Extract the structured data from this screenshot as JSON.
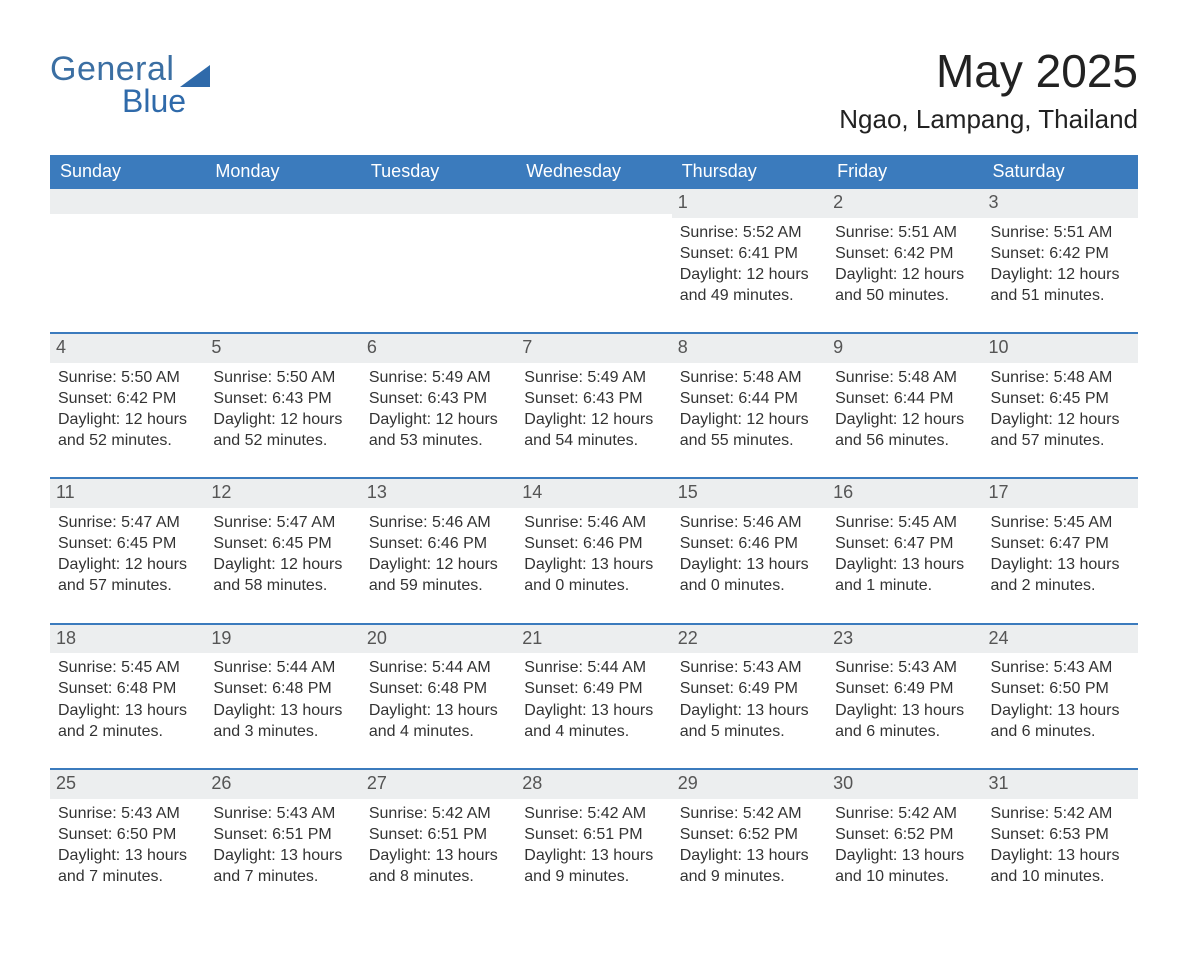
{
  "brand": {
    "word1": "General",
    "word2": "Blue",
    "color": "#2f6aaa"
  },
  "title": "May 2025",
  "location": "Ngao, Lampang, Thailand",
  "header_bg": "#3b7bbd",
  "header_fg": "#ffffff",
  "band_bg": "#eceeef",
  "text_color": "#333333",
  "day_headers": [
    "Sunday",
    "Monday",
    "Tuesday",
    "Wednesday",
    "Thursday",
    "Friday",
    "Saturday"
  ],
  "weeks": [
    [
      null,
      null,
      null,
      null,
      {
        "n": "1",
        "sunrise": "Sunrise: 5:52 AM",
        "sunset": "Sunset: 6:41 PM",
        "dl1": "Daylight: 12 hours",
        "dl2": "and 49 minutes."
      },
      {
        "n": "2",
        "sunrise": "Sunrise: 5:51 AM",
        "sunset": "Sunset: 6:42 PM",
        "dl1": "Daylight: 12 hours",
        "dl2": "and 50 minutes."
      },
      {
        "n": "3",
        "sunrise": "Sunrise: 5:51 AM",
        "sunset": "Sunset: 6:42 PM",
        "dl1": "Daylight: 12 hours",
        "dl2": "and 51 minutes."
      }
    ],
    [
      {
        "n": "4",
        "sunrise": "Sunrise: 5:50 AM",
        "sunset": "Sunset: 6:42 PM",
        "dl1": "Daylight: 12 hours",
        "dl2": "and 52 minutes."
      },
      {
        "n": "5",
        "sunrise": "Sunrise: 5:50 AM",
        "sunset": "Sunset: 6:43 PM",
        "dl1": "Daylight: 12 hours",
        "dl2": "and 52 minutes."
      },
      {
        "n": "6",
        "sunrise": "Sunrise: 5:49 AM",
        "sunset": "Sunset: 6:43 PM",
        "dl1": "Daylight: 12 hours",
        "dl2": "and 53 minutes."
      },
      {
        "n": "7",
        "sunrise": "Sunrise: 5:49 AM",
        "sunset": "Sunset: 6:43 PM",
        "dl1": "Daylight: 12 hours",
        "dl2": "and 54 minutes."
      },
      {
        "n": "8",
        "sunrise": "Sunrise: 5:48 AM",
        "sunset": "Sunset: 6:44 PM",
        "dl1": "Daylight: 12 hours",
        "dl2": "and 55 minutes."
      },
      {
        "n": "9",
        "sunrise": "Sunrise: 5:48 AM",
        "sunset": "Sunset: 6:44 PM",
        "dl1": "Daylight: 12 hours",
        "dl2": "and 56 minutes."
      },
      {
        "n": "10",
        "sunrise": "Sunrise: 5:48 AM",
        "sunset": "Sunset: 6:45 PM",
        "dl1": "Daylight: 12 hours",
        "dl2": "and 57 minutes."
      }
    ],
    [
      {
        "n": "11",
        "sunrise": "Sunrise: 5:47 AM",
        "sunset": "Sunset: 6:45 PM",
        "dl1": "Daylight: 12 hours",
        "dl2": "and 57 minutes."
      },
      {
        "n": "12",
        "sunrise": "Sunrise: 5:47 AM",
        "sunset": "Sunset: 6:45 PM",
        "dl1": "Daylight: 12 hours",
        "dl2": "and 58 minutes."
      },
      {
        "n": "13",
        "sunrise": "Sunrise: 5:46 AM",
        "sunset": "Sunset: 6:46 PM",
        "dl1": "Daylight: 12 hours",
        "dl2": "and 59 minutes."
      },
      {
        "n": "14",
        "sunrise": "Sunrise: 5:46 AM",
        "sunset": "Sunset: 6:46 PM",
        "dl1": "Daylight: 13 hours",
        "dl2": "and 0 minutes."
      },
      {
        "n": "15",
        "sunrise": "Sunrise: 5:46 AM",
        "sunset": "Sunset: 6:46 PM",
        "dl1": "Daylight: 13 hours",
        "dl2": "and 0 minutes."
      },
      {
        "n": "16",
        "sunrise": "Sunrise: 5:45 AM",
        "sunset": "Sunset: 6:47 PM",
        "dl1": "Daylight: 13 hours",
        "dl2": "and 1 minute."
      },
      {
        "n": "17",
        "sunrise": "Sunrise: 5:45 AM",
        "sunset": "Sunset: 6:47 PM",
        "dl1": "Daylight: 13 hours",
        "dl2": "and 2 minutes."
      }
    ],
    [
      {
        "n": "18",
        "sunrise": "Sunrise: 5:45 AM",
        "sunset": "Sunset: 6:48 PM",
        "dl1": "Daylight: 13 hours",
        "dl2": "and 2 minutes."
      },
      {
        "n": "19",
        "sunrise": "Sunrise: 5:44 AM",
        "sunset": "Sunset: 6:48 PM",
        "dl1": "Daylight: 13 hours",
        "dl2": "and 3 minutes."
      },
      {
        "n": "20",
        "sunrise": "Sunrise: 5:44 AM",
        "sunset": "Sunset: 6:48 PM",
        "dl1": "Daylight: 13 hours",
        "dl2": "and 4 minutes."
      },
      {
        "n": "21",
        "sunrise": "Sunrise: 5:44 AM",
        "sunset": "Sunset: 6:49 PM",
        "dl1": "Daylight: 13 hours",
        "dl2": "and 4 minutes."
      },
      {
        "n": "22",
        "sunrise": "Sunrise: 5:43 AM",
        "sunset": "Sunset: 6:49 PM",
        "dl1": "Daylight: 13 hours",
        "dl2": "and 5 minutes."
      },
      {
        "n": "23",
        "sunrise": "Sunrise: 5:43 AM",
        "sunset": "Sunset: 6:49 PM",
        "dl1": "Daylight: 13 hours",
        "dl2": "and 6 minutes."
      },
      {
        "n": "24",
        "sunrise": "Sunrise: 5:43 AM",
        "sunset": "Sunset: 6:50 PM",
        "dl1": "Daylight: 13 hours",
        "dl2": "and 6 minutes."
      }
    ],
    [
      {
        "n": "25",
        "sunrise": "Sunrise: 5:43 AM",
        "sunset": "Sunset: 6:50 PM",
        "dl1": "Daylight: 13 hours",
        "dl2": "and 7 minutes."
      },
      {
        "n": "26",
        "sunrise": "Sunrise: 5:43 AM",
        "sunset": "Sunset: 6:51 PM",
        "dl1": "Daylight: 13 hours",
        "dl2": "and 7 minutes."
      },
      {
        "n": "27",
        "sunrise": "Sunrise: 5:42 AM",
        "sunset": "Sunset: 6:51 PM",
        "dl1": "Daylight: 13 hours",
        "dl2": "and 8 minutes."
      },
      {
        "n": "28",
        "sunrise": "Sunrise: 5:42 AM",
        "sunset": "Sunset: 6:51 PM",
        "dl1": "Daylight: 13 hours",
        "dl2": "and 9 minutes."
      },
      {
        "n": "29",
        "sunrise": "Sunrise: 5:42 AM",
        "sunset": "Sunset: 6:52 PM",
        "dl1": "Daylight: 13 hours",
        "dl2": "and 9 minutes."
      },
      {
        "n": "30",
        "sunrise": "Sunrise: 5:42 AM",
        "sunset": "Sunset: 6:52 PM",
        "dl1": "Daylight: 13 hours",
        "dl2": "and 10 minutes."
      },
      {
        "n": "31",
        "sunrise": "Sunrise: 5:42 AM",
        "sunset": "Sunset: 6:53 PM",
        "dl1": "Daylight: 13 hours",
        "dl2": "and 10 minutes."
      }
    ]
  ]
}
